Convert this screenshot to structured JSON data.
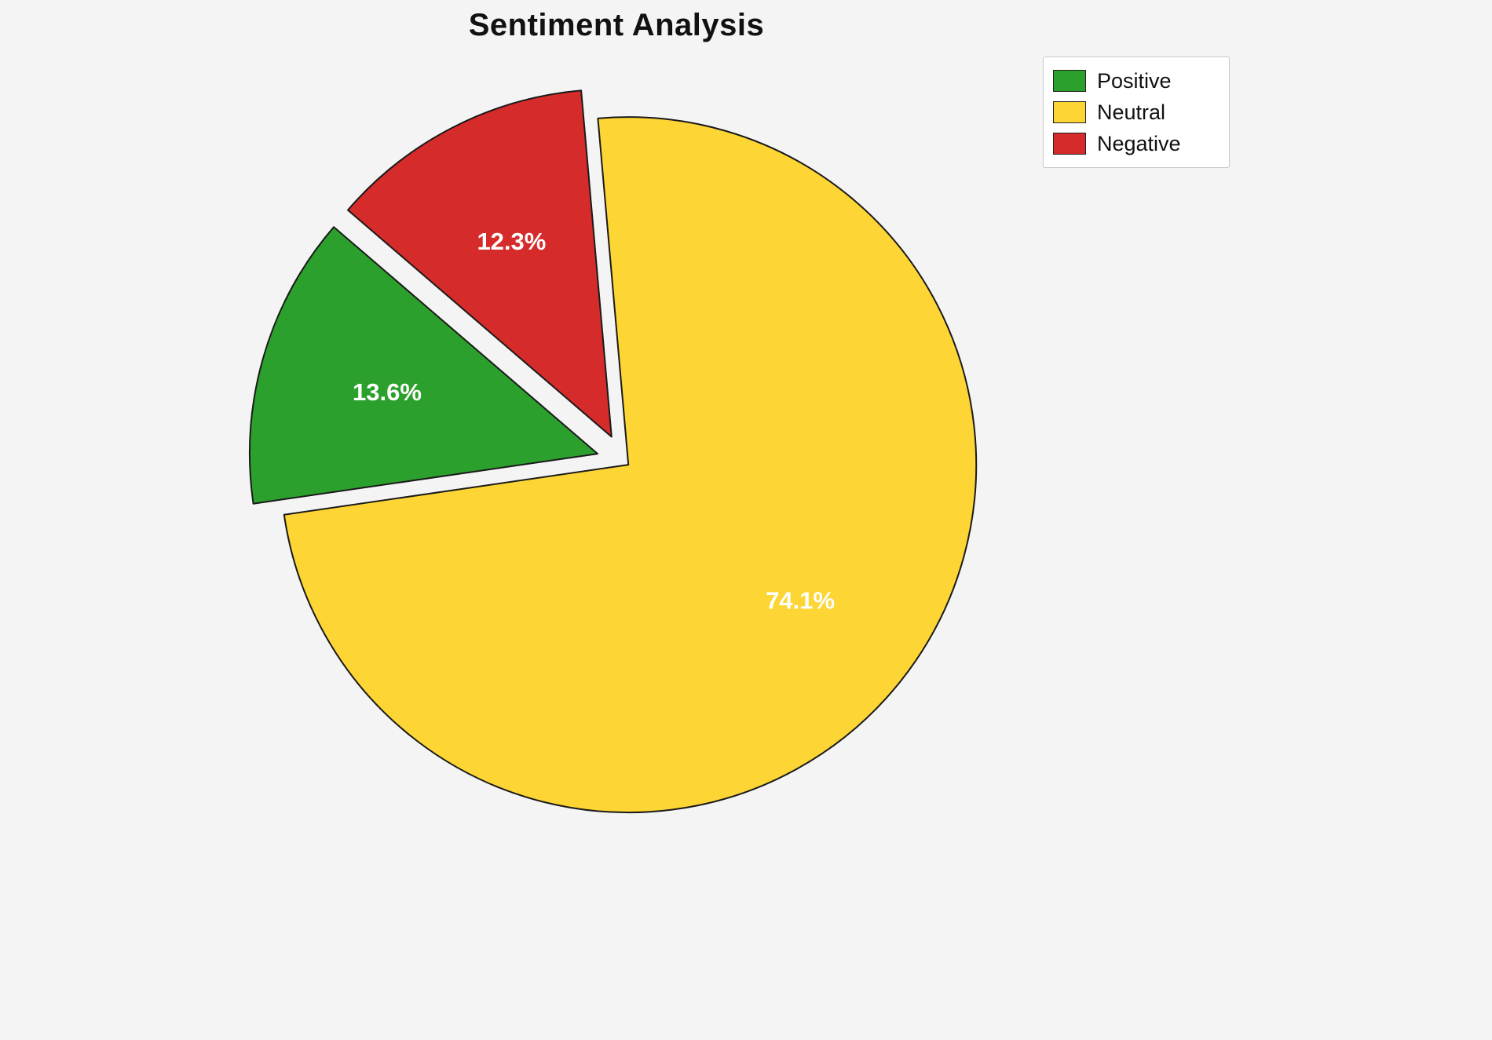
{
  "title": "Sentiment Analysis",
  "background_color": "#f4f4f4",
  "chart_data": {
    "type": "pie",
    "title": "Sentiment Analysis",
    "categories": [
      "Positive",
      "Neutral",
      "Negative"
    ],
    "values": [
      13.6,
      74.1,
      12.3
    ],
    "pct_labels": [
      "13.6%",
      "74.1%",
      "12.3%"
    ],
    "colors": [
      "#2ca02c",
      "#fdd535",
      "#d62b2b"
    ],
    "edge_color": "#1a1a1a",
    "label_color": "#ffffff",
    "start_angle": 139.3,
    "direction": "counterclockwise",
    "explode": [
      0.08,
      0.015,
      0.08
    ],
    "legend_position": "top-right",
    "legend_entries": [
      "Positive",
      "Neutral",
      "Negative"
    ]
  }
}
